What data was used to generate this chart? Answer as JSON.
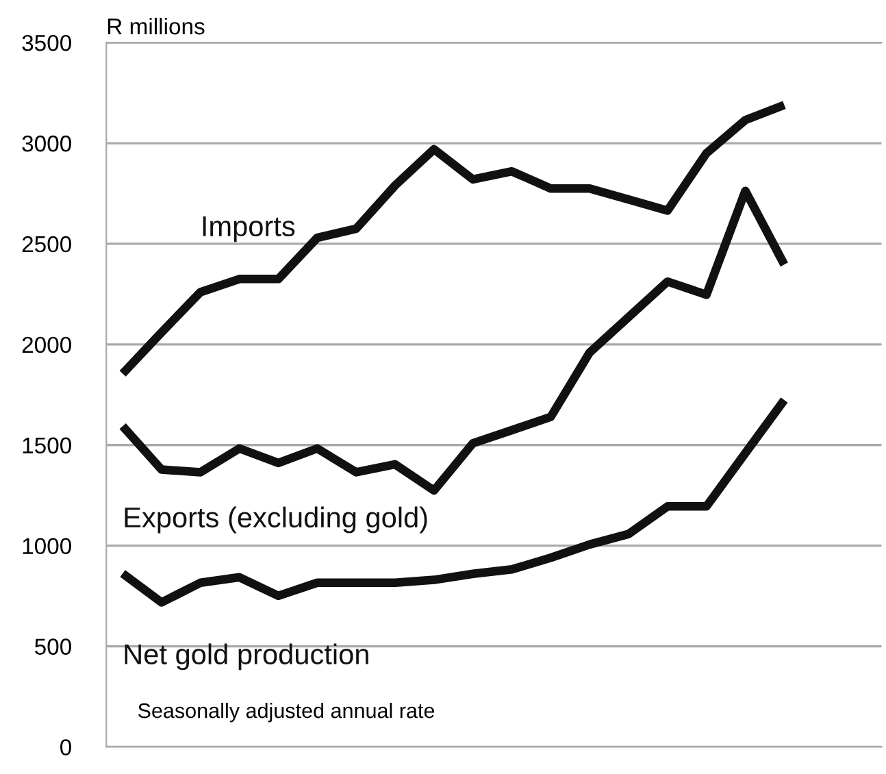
{
  "chart_data": {
    "type": "line",
    "ylabel": "R millions",
    "categories": [
      null,
      null,
      null,
      null,
      null,
      null,
      null,
      null,
      null,
      null,
      null,
      null,
      null,
      null,
      null,
      null,
      null,
      null
    ],
    "series": [
      {
        "name": "Imports",
        "color": "#111111",
        "values": [
          1855,
          2060,
          2260,
          2325,
          2325,
          2530,
          2575,
          2790,
          2970,
          2820,
          2860,
          2775,
          2775,
          2720,
          2665,
          2950,
          3115,
          3190
        ]
      },
      {
        "name": "Exports (excluding gold)",
        "color": "#111111",
        "values": [
          1594,
          1378,
          1365,
          1483,
          1411,
          1483,
          1365,
          1404,
          1274,
          1509,
          1574,
          1640,
          1960,
          2136,
          2312,
          2247,
          2763,
          2397
        ]
      },
      {
        "name": "Net gold production",
        "color": "#111111",
        "values": [
          862,
          718,
          816,
          843,
          751,
          816,
          816,
          816,
          830,
          860,
          882,
          940,
          1006,
          1058,
          1195,
          1195,
          1460,
          1724
        ]
      }
    ],
    "ylim": [
      0,
      3500
    ],
    "yticks": [
      0,
      500,
      1000,
      1500,
      2000,
      2500,
      3000,
      3500
    ],
    "tick_labels": "y",
    "grid": "y",
    "legend": false,
    "marker": "none",
    "line_style": "solid",
    "annotations": [
      "Seasonally adjusted annual rate"
    ]
  }
}
